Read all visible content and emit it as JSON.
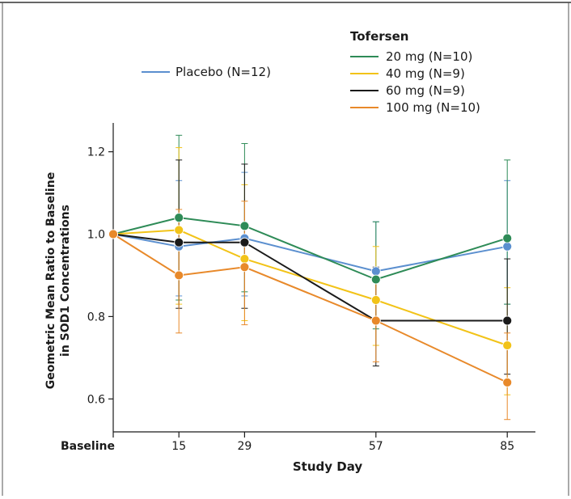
{
  "chart_data": {
    "type": "line",
    "title": "",
    "xlabel": "Study Day",
    "ylabel_line1": "Geometric Mean Ratio to Baseline",
    "ylabel_line2": "in SOD1 Concentrations",
    "x_ticks": [
      {
        "value": 1,
        "label": "Baseline"
      },
      {
        "value": 15,
        "label": "15"
      },
      {
        "value": 29,
        "label": "29"
      },
      {
        "value": 57,
        "label": "57"
      },
      {
        "value": 85,
        "label": "85"
      }
    ],
    "xlim": [
      1,
      91
    ],
    "y_ticks": [
      {
        "value": 0.6,
        "label": "0.6"
      },
      {
        "value": 0.8,
        "label": "0.8"
      },
      {
        "value": 1.0,
        "label": "1.0"
      },
      {
        "value": 1.2,
        "label": "1.2"
      }
    ],
    "ylim": [
      0.52,
      1.27
    ],
    "grid": false,
    "legend": {
      "placebo_label": "Placebo (N=12)",
      "group_title": "Tofersen",
      "position": "top"
    },
    "x": [
      1,
      15,
      29,
      57,
      85
    ],
    "series": [
      {
        "name": "Placebo (N=12)",
        "color": "#5b8fcf",
        "values": [
          1.0,
          0.97,
          0.99,
          0.91,
          0.97
        ],
        "upper": [
          1.0,
          1.13,
          1.15,
          1.03,
          1.13
        ],
        "lower": [
          1.0,
          0.85,
          0.85,
          0.79,
          0.83
        ]
      },
      {
        "name": "20 mg (N=10)",
        "color": "#2e8b57",
        "values": [
          1.0,
          1.04,
          1.02,
          0.89,
          0.99
        ],
        "upper": [
          1.0,
          1.24,
          1.22,
          1.03,
          1.18
        ],
        "lower": [
          1.0,
          0.84,
          0.86,
          0.77,
          0.83
        ]
      },
      {
        "name": "40 mg (N=9)",
        "color": "#f2c318",
        "values": [
          1.0,
          1.01,
          0.94,
          0.84,
          0.73
        ],
        "upper": [
          1.0,
          1.21,
          1.12,
          0.97,
          0.87
        ],
        "lower": [
          1.0,
          0.83,
          0.79,
          0.73,
          0.61
        ]
      },
      {
        "name": "60 mg (N=9)",
        "color": "#1a1a1a",
        "values": [
          1.0,
          0.98,
          0.98,
          0.79,
          0.79
        ],
        "upper": [
          1.0,
          1.18,
          1.17,
          0.92,
          0.94
        ],
        "lower": [
          1.0,
          0.82,
          0.82,
          0.68,
          0.66
        ]
      },
      {
        "name": "100 mg (N=10)",
        "color": "#e8892a",
        "values": [
          1.0,
          0.9,
          0.92,
          0.79,
          0.64
        ],
        "upper": [
          1.0,
          1.06,
          1.08,
          0.91,
          0.76
        ],
        "lower": [
          1.0,
          0.76,
          0.78,
          0.69,
          0.55
        ]
      }
    ]
  }
}
